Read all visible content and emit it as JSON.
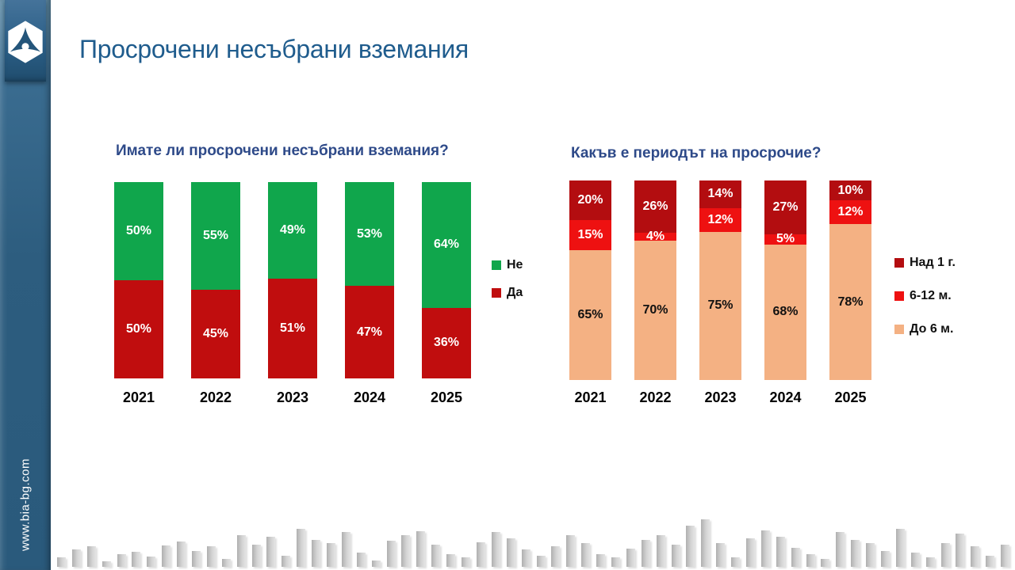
{
  "slide": {
    "title": "Просрочени несъбрани вземания",
    "website": "www.bia-bg.com"
  },
  "colors": {
    "title_blue": "#1F5C8D",
    "chart_title_blue": "#2E4A89",
    "sidebar_blue": "#2C5C7E",
    "green": "#10A64C",
    "dark_red": "#C00D0E",
    "darker_red": "#B30D10",
    "bright_red": "#EE1111",
    "peach": "#F4B183"
  },
  "chart_data": [
    {
      "type": "bar",
      "stacked": true,
      "orientation": "vertical",
      "title": "Имате ли просрочени несъбрани вземания?",
      "categories": [
        "2021",
        "2022",
        "2023",
        "2024",
        "2025"
      ],
      "series": [
        {
          "name": "Не",
          "color": "#10A64C",
          "label_color": "#FFFFFF",
          "values": [
            50,
            55,
            49,
            53,
            64
          ]
        },
        {
          "name": "Да",
          "color": "#C00D0E",
          "label_color": "#FFFFFF",
          "values": [
            50,
            45,
            51,
            47,
            36
          ]
        }
      ],
      "value_suffix": "%",
      "ylim": [
        0,
        100
      ],
      "grid": false,
      "axis_lines": false,
      "legend_position": "right"
    },
    {
      "type": "bar",
      "stacked": true,
      "orientation": "vertical",
      "title": "Какъв е периодът на просрочие?",
      "categories": [
        "2021",
        "2022",
        "2023",
        "2024",
        "2025"
      ],
      "series": [
        {
          "name": "Над 1 г.",
          "color": "#B30D10",
          "label_color": "#FFFFFF",
          "values": [
            20,
            26,
            14,
            27,
            10
          ]
        },
        {
          "name": "6-12 м.",
          "color": "#EE1111",
          "label_color": "#FFFFFF",
          "values": [
            15,
            4,
            12,
            5,
            12
          ]
        },
        {
          "name": "До 6 м.",
          "color": "#F4B183",
          "label_color": "#111111",
          "values": [
            65,
            70,
            75,
            68,
            78
          ]
        }
      ],
      "value_suffix": "%",
      "ylim": [
        0,
        100
      ],
      "grid": false,
      "axis_lines": false,
      "legend_position": "right"
    }
  ],
  "footer_decoration": {
    "bar_heights": [
      12,
      22,
      26,
      7,
      16,
      19,
      13,
      27,
      32,
      20,
      26,
      10,
      40,
      28,
      38,
      14,
      48,
      34,
      30,
      44,
      18,
      8,
      33,
      40,
      45,
      28,
      16,
      12,
      31,
      44,
      36,
      22,
      14,
      26,
      40,
      30,
      16,
      12,
      23,
      34,
      40,
      28,
      52,
      60,
      30,
      12,
      36,
      46,
      38,
      24,
      16,
      10,
      44,
      34,
      30,
      20,
      48,
      18,
      12,
      30,
      42,
      26,
      14,
      28
    ]
  }
}
